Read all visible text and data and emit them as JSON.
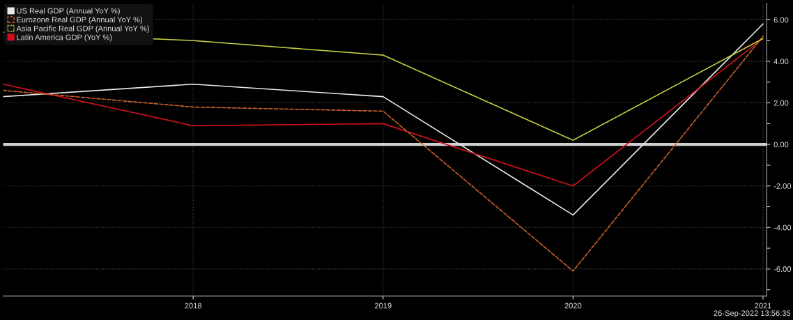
{
  "chart_data": {
    "type": "line",
    "x": [
      2017,
      2018,
      2019,
      2020,
      2021
    ],
    "series": [
      {
        "name": "US Real GDP (Annual YoY %)",
        "color": "#e8e8e8",
        "line_style": "solid",
        "values": [
          2.3,
          2.9,
          2.3,
          -3.4,
          5.8
        ]
      },
      {
        "name": "Eurozone Real GDP (Annual YoY %)",
        "color": "#c8602a",
        "line_style": "dashed",
        "values": [
          2.6,
          1.8,
          1.6,
          -6.1,
          5.2
        ]
      },
      {
        "name": "Asia Pacific Real GDP (Annual YoY %)",
        "color": "#c8d040",
        "line_style": "dotted",
        "values": [
          5.4,
          5.0,
          4.3,
          0.2,
          5.1
        ]
      },
      {
        "name": "Latin America GDP (YoY %)",
        "color": "#d0101e",
        "line_style": "solid",
        "values": [
          2.9,
          0.9,
          1.0,
          -2.0,
          5.1
        ]
      }
    ],
    "xlim": [
      2017,
      2021.02
    ],
    "xticks": [
      2018,
      2019,
      2020,
      2021
    ],
    "ylim": [
      -7.3,
      6.8
    ],
    "yticks": [
      {
        "value": 6,
        "label": "6.00"
      },
      {
        "value": 5,
        "label": null
      },
      {
        "value": 4,
        "label": "4.00"
      },
      {
        "value": 3,
        "label": null
      },
      {
        "value": 2,
        "label": "2.00"
      },
      {
        "value": 1,
        "label": null
      },
      {
        "value": 0,
        "label": "0.00"
      },
      {
        "value": -1,
        "label": null
      },
      {
        "value": -2,
        "label": "-2.00"
      },
      {
        "value": -3,
        "label": null
      },
      {
        "value": -4,
        "label": "-4.00"
      },
      {
        "value": -5,
        "label": null
      },
      {
        "value": -6,
        "label": "-6.00"
      },
      {
        "value": -7,
        "label": null
      }
    ],
    "ref_lines": [
      {
        "axis": "y",
        "value": 0,
        "color": "#d0d0d0"
      }
    ],
    "grid": true,
    "legend": "top left",
    "marker": "none",
    "annotations": [
      "26-Sep-2022 13:56:35"
    ]
  }
}
